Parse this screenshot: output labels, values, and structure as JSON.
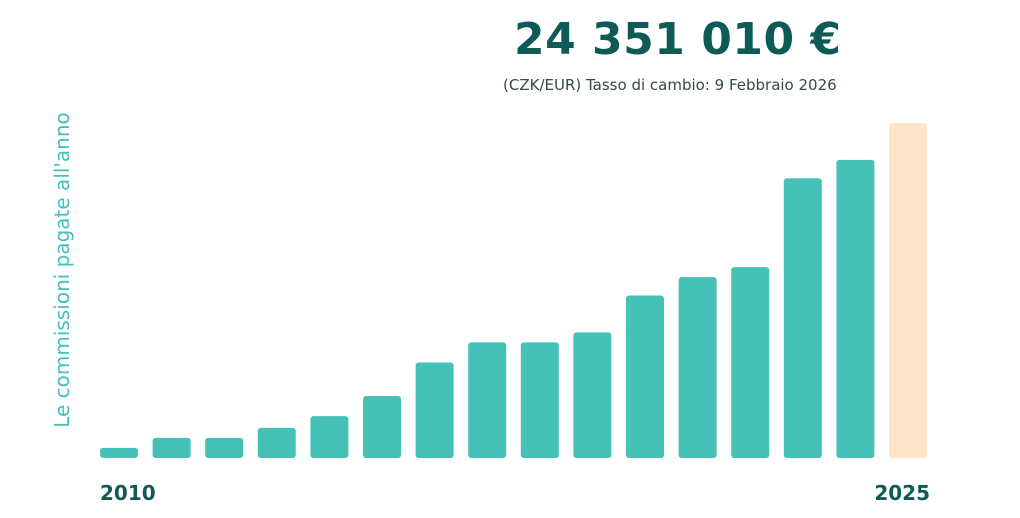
{
  "header": {
    "total_amount": "24 351 010 €",
    "rate_note": "(CZK/EUR) Tasso di cambio: 9 Febbraio 2026"
  },
  "chart_data": {
    "type": "bar",
    "categories": [
      "2010",
      "2011",
      "2012",
      "2013",
      "2014",
      "2015",
      "2016",
      "2017",
      "2018",
      "2019",
      "2020",
      "2021",
      "2022",
      "2023",
      "2024",
      "2025"
    ],
    "values": [
      3,
      6,
      6,
      9,
      12.5,
      18.5,
      28.5,
      34.5,
      34.5,
      37.5,
      48.5,
      54,
      57,
      83.5,
      89,
      100
    ],
    "ylabel": "Le commissioni pagate all'anno",
    "ylim": [
      0,
      100
    ],
    "shown_tick_labels": [
      "2010",
      "2025"
    ],
    "grid": false,
    "colors": {
      "bar": "#45c1b8",
      "current_year_bar": "#fce5c9"
    }
  }
}
